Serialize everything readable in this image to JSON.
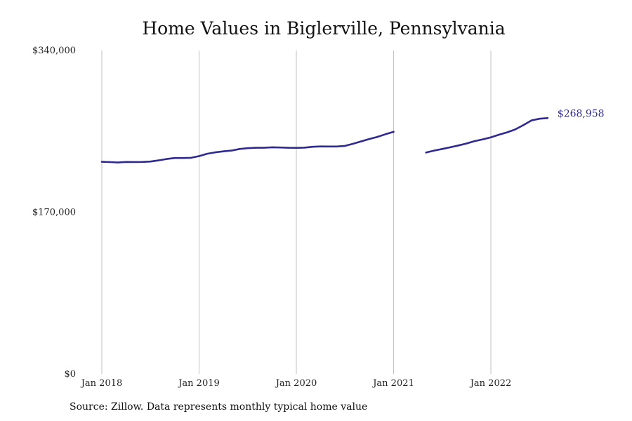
{
  "chart_data": {
    "type": "line",
    "title": "Home Values in Biglerville, Pennsylvania",
    "source": "Source: Zillow. Data represents monthly typical home value",
    "xlabel": "",
    "ylabel": "",
    "ylim": [
      0,
      340000
    ],
    "y_ticks": [
      {
        "value": 0,
        "label": "$0"
      },
      {
        "value": 170000,
        "label": "$170,000"
      },
      {
        "value": 340000,
        "label": "$340,000"
      }
    ],
    "x_ticks": [
      {
        "value": "2018-01",
        "label": "Jan 2018"
      },
      {
        "value": "2019-01",
        "label": "Jan 2019"
      },
      {
        "value": "2020-01",
        "label": "Jan 2020"
      },
      {
        "value": "2021-01",
        "label": "Jan 2021"
      },
      {
        "value": "2022-01",
        "label": "Jan 2022"
      }
    ],
    "grid": "vertical",
    "line_color": "#2e2a8f",
    "end_label": "$268,958",
    "series": [
      {
        "segments": [
          [
            {
              "x": "2018-01",
              "y": 223000
            },
            {
              "x": "2018-02",
              "y": 222700
            },
            {
              "x": "2018-03",
              "y": 222300
            },
            {
              "x": "2018-04",
              "y": 222900
            },
            {
              "x": "2018-05",
              "y": 222800
            },
            {
              "x": "2018-06",
              "y": 222900
            },
            {
              "x": "2018-07",
              "y": 223300
            },
            {
              "x": "2018-08",
              "y": 224500
            },
            {
              "x": "2018-09",
              "y": 226000
            },
            {
              "x": "2018-10",
              "y": 227000
            },
            {
              "x": "2018-11",
              "y": 227000
            },
            {
              "x": "2018-12",
              "y": 227200
            },
            {
              "x": "2019-01",
              "y": 229000
            },
            {
              "x": "2019-02",
              "y": 231500
            },
            {
              "x": "2019-03",
              "y": 233000
            },
            {
              "x": "2019-04",
              "y": 234000
            },
            {
              "x": "2019-05",
              "y": 234800
            },
            {
              "x": "2019-06",
              "y": 236500
            },
            {
              "x": "2019-07",
              "y": 237300
            },
            {
              "x": "2019-08",
              "y": 237800
            },
            {
              "x": "2019-09",
              "y": 237800
            },
            {
              "x": "2019-10",
              "y": 238300
            },
            {
              "x": "2019-11",
              "y": 238100
            },
            {
              "x": "2019-12",
              "y": 237800
            },
            {
              "x": "2020-01",
              "y": 237700
            },
            {
              "x": "2020-02",
              "y": 237900
            },
            {
              "x": "2020-03",
              "y": 238800
            },
            {
              "x": "2020-04",
              "y": 239200
            },
            {
              "x": "2020-05",
              "y": 239100
            },
            {
              "x": "2020-06",
              "y": 239100
            },
            {
              "x": "2020-07",
              "y": 239800
            },
            {
              "x": "2020-08",
              "y": 242000
            },
            {
              "x": "2020-09",
              "y": 244500
            },
            {
              "x": "2020-10",
              "y": 247000
            },
            {
              "x": "2020-11",
              "y": 249200
            },
            {
              "x": "2020-12",
              "y": 252000
            },
            {
              "x": "2021-01",
              "y": 254500
            }
          ],
          [
            {
              "x": "2021-05",
              "y": 232800
            },
            {
              "x": "2021-06",
              "y": 234800
            },
            {
              "x": "2021-07",
              "y": 236500
            },
            {
              "x": "2021-08",
              "y": 238300
            },
            {
              "x": "2021-09",
              "y": 240200
            },
            {
              "x": "2021-10",
              "y": 242300
            },
            {
              "x": "2021-11",
              "y": 244800
            },
            {
              "x": "2021-12",
              "y": 246600
            },
            {
              "x": "2022-01",
              "y": 248800
            },
            {
              "x": "2022-02",
              "y": 251500
            },
            {
              "x": "2022-03",
              "y": 254000
            },
            {
              "x": "2022-04",
              "y": 257000
            },
            {
              "x": "2022-05",
              "y": 261500
            },
            {
              "x": "2022-06",
              "y": 266500
            },
            {
              "x": "2022-07",
              "y": 268300
            },
            {
              "x": "2022-08",
              "y": 268958
            }
          ]
        ]
      }
    ]
  }
}
